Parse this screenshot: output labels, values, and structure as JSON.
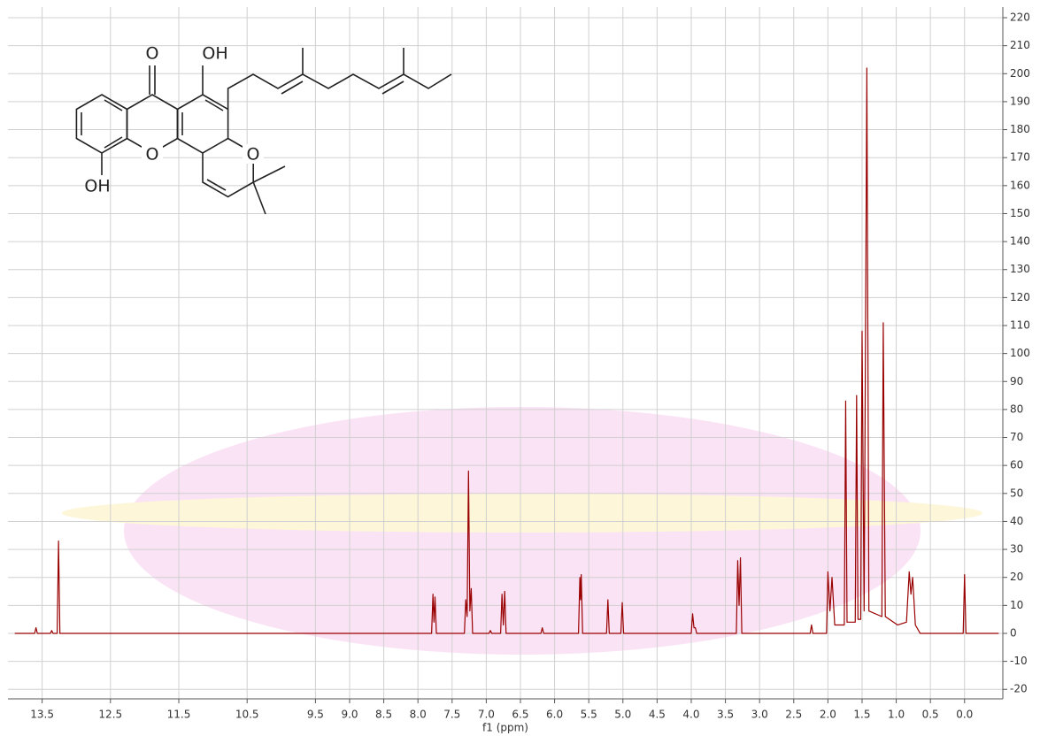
{
  "chart_data": {
    "type": "line",
    "xlabel": "f1 (ppm)",
    "xlim": [
      14.0,
      -0.56
    ],
    "ylim": [
      -23.4,
      223.8
    ],
    "xticks": [
      13.5,
      12.5,
      11.5,
      10.5,
      9.5,
      {
        "value": 9,
        "label": "9.0"
      },
      8.5,
      {
        "value": 8,
        "label": "8.0"
      },
      7.5,
      {
        "value": 7,
        "label": "7.0"
      },
      6.5,
      {
        "value": 6,
        "label": "6.0"
      },
      5.5,
      {
        "value": 5,
        "label": "5.0"
      },
      4.5,
      {
        "value": 4,
        "label": "4.0"
      },
      3.5,
      {
        "value": 3,
        "label": "3.0"
      },
      2.5,
      {
        "value": 2,
        "label": "2.0"
      },
      1.5,
      {
        "value": 1,
        "label": "1.0"
      },
      0.5,
      {
        "value": 0,
        "label": "0.0"
      }
    ],
    "yticks": [
      -20,
      -10,
      0,
      10,
      20,
      30,
      40,
      50,
      60,
      70,
      80,
      90,
      100,
      110,
      120,
      130,
      140,
      150,
      160,
      170,
      180,
      190,
      200,
      210,
      220
    ],
    "grid": true,
    "annotations": [
      "O",
      "OH",
      "O",
      "O",
      "OH"
    ],
    "x": [
      13.9,
      13.61,
      13.59,
      13.57,
      13.38,
      13.36,
      13.34,
      13.28,
      13.26,
      13.24,
      7.8,
      7.78,
      7.765,
      7.75,
      7.73,
      7.32,
      7.3,
      7.28,
      7.26,
      7.24,
      7.22,
      7.2,
      6.96,
      6.94,
      6.92,
      6.79,
      6.77,
      6.75,
      6.73,
      6.71,
      6.2,
      6.18,
      6.16,
      5.65,
      5.63,
      5.62,
      5.61,
      5.59,
      5.24,
      5.22,
      5.2,
      5.03,
      5.01,
      4.99,
      4.0,
      3.98,
      3.96,
      3.94,
      3.92,
      3.34,
      3.32,
      3.3,
      3.28,
      3.26,
      2.26,
      2.24,
      2.22,
      2.02,
      2.0,
      1.97,
      1.94,
      1.9,
      1.76,
      1.74,
      1.72,
      1.6,
      1.58,
      1.56,
      1.52,
      1.5,
      1.47,
      1.43,
      1.4,
      1.21,
      1.19,
      1.16,
      0.98,
      0.85,
      0.81,
      0.785,
      0.76,
      0.72,
      0.65,
      0.02,
      0.0,
      -0.02,
      -0.5
    ],
    "series": [
      {
        "color": "#990000",
        "values": [
          0,
          0,
          2,
          0,
          0,
          1,
          0,
          0,
          33,
          0,
          0,
          14,
          4,
          13,
          0,
          0,
          12,
          6,
          58,
          8,
          16,
          0,
          0,
          1,
          0,
          0,
          14,
          3,
          15,
          0,
          0,
          2,
          0,
          0,
          20,
          12,
          21,
          0,
          0,
          12,
          0,
          0,
          11,
          0,
          0,
          7,
          2,
          2,
          0,
          0,
          26,
          10,
          27,
          0,
          0,
          3,
          0,
          0,
          22,
          8,
          20,
          3,
          3,
          83,
          4,
          4,
          85,
          5,
          5,
          108,
          8,
          202,
          8,
          6,
          111,
          6,
          3,
          4,
          22,
          14,
          20,
          3,
          0,
          0,
          21,
          0,
          0
        ]
      }
    ]
  }
}
